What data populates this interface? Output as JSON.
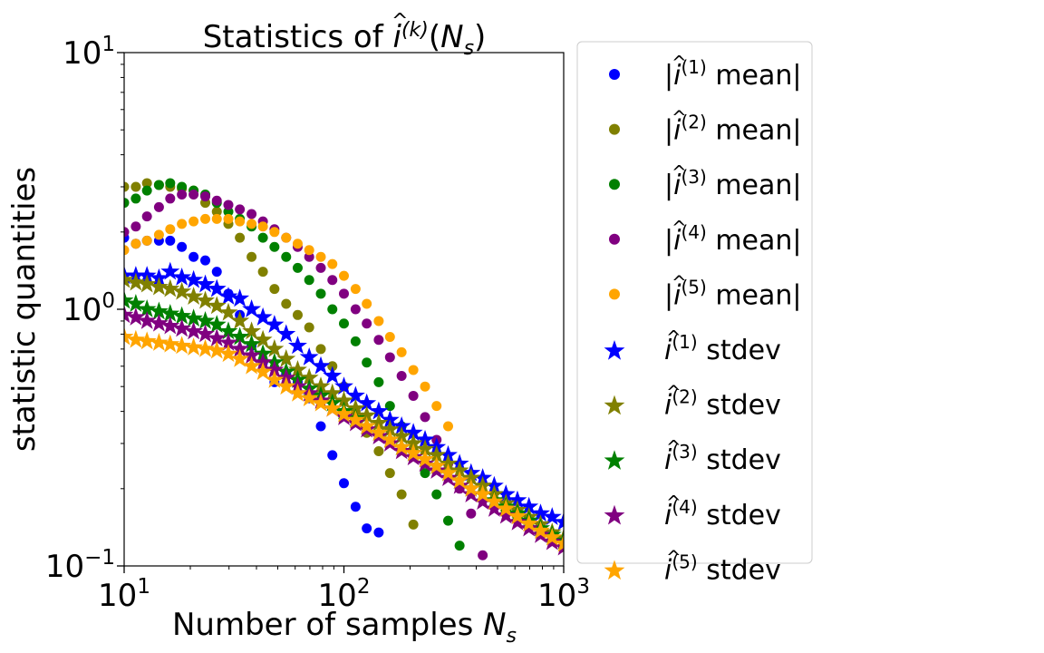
{
  "chart_data": {
    "type": "scatter",
    "title": {
      "prefix": "Statistics of ",
      "symbol": "i",
      "hat": "^",
      "superscript": "(k)",
      "arg_open": "(",
      "arg_symbol": "N",
      "arg_sub": "s",
      "arg_close": ")"
    },
    "xlabel": {
      "text": "Number of samples ",
      "symbol": "N",
      "sub": "s"
    },
    "ylabel": "statistic quantities",
    "xscale": "log",
    "yscale": "log",
    "xlim": [
      10,
      1000
    ],
    "ylim": [
      0.1,
      10
    ],
    "x_ticks": [
      {
        "base": "10",
        "exp": "1"
      },
      {
        "base": "10",
        "exp": "2"
      },
      {
        "base": "10",
        "exp": "3"
      }
    ],
    "y_ticks": [
      {
        "base": "10",
        "exp": "−1"
      },
      {
        "base": "10",
        "exp": "0"
      },
      {
        "base": "10",
        "exp": "1"
      }
    ],
    "legend_position": "outside-right",
    "series": [
      {
        "name": "|î(1) mean|",
        "label": {
          "pre": "|",
          "sym": "i",
          "sup": "(1)",
          "post": " mean|"
        },
        "marker": "circle",
        "color": "#0000ff",
        "x": [
          10,
          11.3,
          12.7,
          14.4,
          16.2,
          18.3,
          20.7,
          23.4,
          26.4,
          29.8,
          33.6,
          38,
          42.8,
          48.3,
          54.6,
          61.6,
          69.5,
          78.5,
          88.6,
          100,
          113,
          127,
          144
        ],
        "y": [
          1.9,
          1.8,
          1.85,
          1.85,
          1.85,
          1.75,
          1.6,
          1.55,
          1.4,
          1.15,
          0.95,
          0.72,
          0.62,
          0.52,
          0.56,
          0.52,
          0.45,
          0.35,
          0.27,
          0.21,
          0.17,
          0.14,
          0.135
        ]
      },
      {
        "name": "|î(2) mean|",
        "label": {
          "pre": "|",
          "sym": "i",
          "sup": "(2)",
          "post": " mean|"
        },
        "marker": "circle",
        "color": "#808000",
        "x": [
          10,
          11.3,
          12.7,
          14.4,
          16.2,
          18.3,
          20.7,
          23.4,
          26.4,
          29.8,
          33.6,
          38,
          42.8,
          48.3,
          54.6,
          61.6,
          69.5,
          78.5,
          88.6,
          100,
          113,
          127,
          144,
          162,
          183,
          207
        ],
        "y": [
          3.0,
          3.0,
          3.1,
          3.05,
          3.0,
          2.95,
          2.9,
          2.6,
          2.4,
          2.15,
          1.9,
          1.6,
          1.4,
          1.2,
          1.05,
          0.95,
          0.85,
          0.7,
          0.6,
          0.5,
          0.4,
          0.33,
          0.28,
          0.23,
          0.19,
          0.145
        ]
      },
      {
        "name": "|î(3) mean|",
        "label": {
          "pre": "|",
          "sym": "i",
          "sup": "(3)",
          "post": " mean|"
        },
        "marker": "circle",
        "color": "#008000",
        "x": [
          10,
          11.3,
          12.7,
          14.4,
          16.2,
          18.3,
          20.7,
          23.4,
          26.4,
          29.8,
          33.6,
          38,
          42.8,
          48.3,
          54.6,
          61.6,
          69.5,
          78.5,
          88.6,
          100,
          113,
          127,
          144,
          162,
          183,
          207,
          234,
          264,
          298,
          336
        ],
        "y": [
          2.6,
          2.7,
          2.9,
          3.05,
          3.1,
          3.0,
          2.9,
          2.8,
          2.6,
          2.4,
          2.25,
          2.1,
          1.9,
          1.75,
          1.6,
          1.45,
          1.3,
          1.15,
          1.0,
          0.88,
          0.75,
          0.62,
          0.52,
          0.42,
          0.35,
          0.28,
          0.23,
          0.19,
          0.15,
          0.12
        ]
      },
      {
        "name": "|î(4) mean|",
        "label": {
          "pre": "|",
          "sym": "i",
          "sup": "(4)",
          "post": " mean|"
        },
        "marker": "circle",
        "color": "#800080",
        "x": [
          10,
          11.3,
          12.7,
          14.4,
          16.2,
          18.3,
          20.7,
          23.4,
          26.4,
          29.8,
          33.6,
          38,
          42.8,
          48.3,
          54.6,
          61.6,
          69.5,
          78.5,
          88.6,
          100,
          113,
          127,
          144,
          162,
          183,
          207,
          234,
          264,
          298,
          336,
          379,
          428
        ],
        "y": [
          2.0,
          2.1,
          2.3,
          2.5,
          2.7,
          2.8,
          2.8,
          2.75,
          2.65,
          2.55,
          2.45,
          2.35,
          2.2,
          2.05,
          1.9,
          1.75,
          1.6,
          1.45,
          1.3,
          1.15,
          1.0,
          0.88,
          0.76,
          0.65,
          0.55,
          0.46,
          0.38,
          0.31,
          0.25,
          0.2,
          0.16,
          0.11
        ]
      },
      {
        "name": "|î(5) mean|",
        "label": {
          "pre": "|",
          "sym": "i",
          "sup": "(5)",
          "post": " mean|"
        },
        "marker": "circle",
        "color": "#ffa500",
        "x": [
          10,
          11.3,
          12.7,
          14.4,
          16.2,
          18.3,
          20.7,
          23.4,
          26.4,
          29.8,
          33.6,
          38,
          42.8,
          48.3,
          54.6,
          61.6,
          69.5,
          78.5,
          88.6,
          100,
          113,
          127,
          144,
          162,
          183,
          207,
          234,
          264,
          298
        ],
        "y": [
          1.7,
          1.8,
          1.85,
          1.95,
          2.05,
          2.15,
          2.2,
          2.25,
          2.25,
          2.25,
          2.2,
          2.15,
          2.1,
          2.0,
          1.9,
          1.8,
          1.7,
          1.6,
          1.5,
          1.35,
          1.2,
          1.05,
          0.9,
          0.78,
          0.68,
          0.58,
          0.5,
          0.42,
          0.35
        ]
      },
      {
        "name": "î(1) stdev",
        "label": {
          "pre": "",
          "sym": "i",
          "sup": "(1)",
          "post": " stdev"
        },
        "marker": "star",
        "color": "#0000ff",
        "x": [
          10,
          11.3,
          12.7,
          14.4,
          16.2,
          18.3,
          20.7,
          23.4,
          26.4,
          29.8,
          33.6,
          38,
          42.8,
          48.3,
          54.6,
          61.6,
          69.5,
          78.5,
          88.6,
          100,
          113,
          127,
          144,
          162,
          183,
          207,
          234,
          264,
          298,
          336,
          379,
          428,
          483,
          546,
          616,
          695,
          785,
          886,
          1000
        ],
        "y": [
          1.35,
          1.35,
          1.35,
          1.32,
          1.4,
          1.33,
          1.3,
          1.25,
          1.2,
          1.12,
          1.1,
          1.0,
          0.93,
          0.87,
          0.8,
          0.72,
          0.65,
          0.6,
          0.55,
          0.5,
          0.46,
          0.43,
          0.4,
          0.37,
          0.35,
          0.33,
          0.31,
          0.29,
          0.27,
          0.25,
          0.23,
          0.22,
          0.205,
          0.19,
          0.18,
          0.17,
          0.16,
          0.155,
          0.148
        ]
      },
      {
        "name": "î(2) stdev",
        "label": {
          "pre": "",
          "sym": "i",
          "sup": "(2)",
          "post": " stdev"
        },
        "marker": "star",
        "color": "#808000",
        "x": [
          10,
          11.3,
          12.7,
          14.4,
          16.2,
          18.3,
          20.7,
          23.4,
          26.4,
          29.8,
          33.6,
          38,
          42.8,
          48.3,
          54.6,
          61.6,
          69.5,
          78.5,
          88.6,
          100,
          113,
          127,
          144,
          162,
          183,
          207,
          234,
          264,
          298,
          336,
          379,
          428,
          483,
          546,
          616,
          695,
          785,
          886,
          1000
        ],
        "y": [
          1.3,
          1.27,
          1.25,
          1.22,
          1.2,
          1.17,
          1.12,
          1.08,
          1.03,
          0.97,
          0.9,
          0.82,
          0.76,
          0.7,
          0.64,
          0.58,
          0.54,
          0.5,
          0.47,
          0.44,
          0.41,
          0.385,
          0.36,
          0.34,
          0.32,
          0.3,
          0.285,
          0.27,
          0.25,
          0.235,
          0.22,
          0.205,
          0.19,
          0.175,
          0.165,
          0.155,
          0.145,
          0.135,
          0.128
        ]
      },
      {
        "name": "î(3) stdev",
        "label": {
          "pre": "",
          "sym": "i",
          "sup": "(3)",
          "post": " stdev"
        },
        "marker": "star",
        "color": "#008000",
        "x": [
          10,
          11.3,
          12.7,
          14.4,
          16.2,
          18.3,
          20.7,
          23.4,
          26.4,
          29.8,
          33.6,
          38,
          42.8,
          48.3,
          54.6,
          61.6,
          69.5,
          78.5,
          88.6,
          100,
          113,
          127,
          144,
          162,
          183,
          207,
          234,
          264,
          298,
          336,
          379,
          428,
          483,
          546,
          616,
          695,
          785,
          886,
          1000
        ],
        "y": [
          1.08,
          1.05,
          1.0,
          0.98,
          0.96,
          0.94,
          0.92,
          0.9,
          0.87,
          0.82,
          0.78,
          0.73,
          0.67,
          0.62,
          0.57,
          0.53,
          0.49,
          0.46,
          0.43,
          0.4,
          0.375,
          0.35,
          0.33,
          0.31,
          0.29,
          0.275,
          0.26,
          0.245,
          0.23,
          0.215,
          0.2,
          0.19,
          0.18,
          0.17,
          0.16,
          0.15,
          0.14,
          0.132,
          0.125
        ]
      },
      {
        "name": "î(4) stdev",
        "label": {
          "pre": "",
          "sym": "i",
          "sup": "(4)",
          "post": " stdev"
        },
        "marker": "star",
        "color": "#800080",
        "x": [
          10,
          11.3,
          12.7,
          14.4,
          16.2,
          18.3,
          20.7,
          23.4,
          26.4,
          29.8,
          33.6,
          38,
          42.8,
          48.3,
          54.6,
          61.6,
          69.5,
          78.5,
          88.6,
          100,
          113,
          127,
          144,
          162,
          183,
          207,
          234,
          264,
          298,
          336,
          379,
          428,
          483,
          546,
          616,
          695,
          785,
          886,
          1000
        ],
        "y": [
          0.95,
          0.93,
          0.9,
          0.88,
          0.86,
          0.84,
          0.82,
          0.8,
          0.77,
          0.74,
          0.7,
          0.66,
          0.62,
          0.58,
          0.54,
          0.5,
          0.47,
          0.44,
          0.41,
          0.38,
          0.36,
          0.34,
          0.32,
          0.3,
          0.28,
          0.265,
          0.25,
          0.235,
          0.22,
          0.205,
          0.19,
          0.178,
          0.167,
          0.157,
          0.148,
          0.14,
          0.132,
          0.124,
          0.118
        ]
      },
      {
        "name": "î(5) stdev",
        "label": {
          "pre": "",
          "sym": "i",
          "sup": "(5)",
          "post": " stdev"
        },
        "marker": "star",
        "color": "#ffa500",
        "x": [
          10,
          11.3,
          12.7,
          14.4,
          16.2,
          18.3,
          20.7,
          23.4,
          26.4,
          29.8,
          33.6,
          38,
          42.8,
          48.3,
          54.6,
          61.6,
          69.5,
          78.5,
          88.6,
          100,
          113,
          127,
          144,
          162,
          183,
          207,
          234,
          264,
          298,
          336,
          379,
          428,
          483,
          546,
          616,
          695,
          785,
          886,
          1000
        ],
        "y": [
          0.78,
          0.76,
          0.75,
          0.74,
          0.73,
          0.72,
          0.71,
          0.7,
          0.69,
          0.67,
          0.64,
          0.6,
          0.57,
          0.53,
          0.5,
          0.47,
          0.45,
          0.43,
          0.41,
          0.39,
          0.37,
          0.35,
          0.33,
          0.31,
          0.29,
          0.275,
          0.26,
          0.245,
          0.23,
          0.215,
          0.2,
          0.19,
          0.178,
          0.167,
          0.156,
          0.146,
          0.137,
          0.129,
          0.122
        ]
      }
    ]
  }
}
